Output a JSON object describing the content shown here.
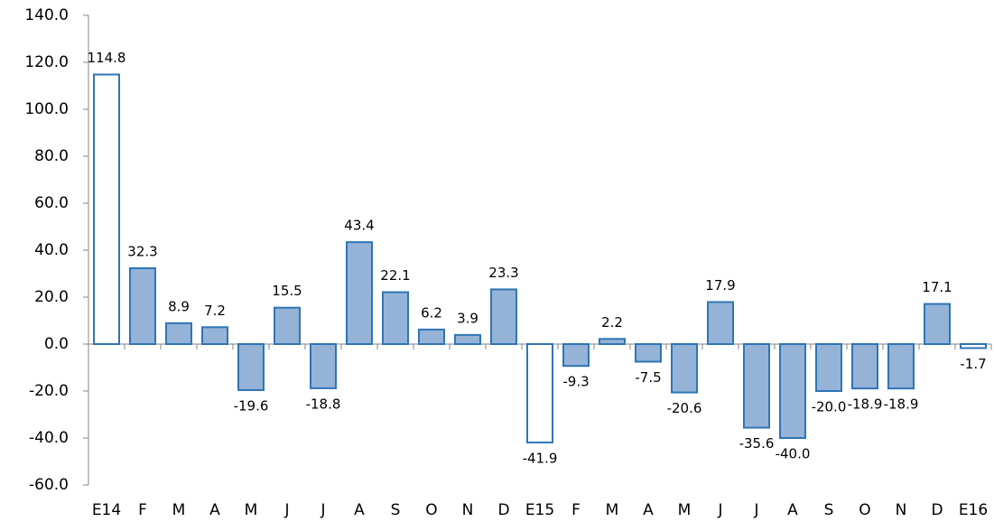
{
  "chart_data": {
    "type": "bar",
    "categories": [
      "E14",
      "F",
      "M",
      "A",
      "M",
      "J",
      "J",
      "A",
      "S",
      "O",
      "N",
      "D",
      "E15",
      "F",
      "M",
      "A",
      "M",
      "J",
      "J",
      "A",
      "S",
      "O",
      "N",
      "D",
      "E16"
    ],
    "values": [
      114.8,
      32.3,
      8.9,
      7.2,
      -19.6,
      15.5,
      -18.8,
      43.4,
      22.1,
      6.2,
      3.9,
      23.3,
      -41.9,
      -9.3,
      2.2,
      -7.5,
      -20.6,
      17.9,
      -35.6,
      -40.0,
      -20.0,
      -18.9,
      -18.9,
      17.1,
      -1.7
    ],
    "value_labels": [
      "114.8",
      "32.3",
      "8.9",
      "7.2",
      "-19.6",
      "15.5",
      "-18.8",
      "43.4",
      "22.1",
      "6.2",
      "3.9",
      "23.3",
      "-41.9",
      "-9.3",
      "2.2",
      "-7.5",
      "-20.6",
      "17.9",
      "-35.6",
      "-40.0",
      "-20.0",
      "-18.9",
      "-18.9",
      "17.1",
      "-1.7"
    ],
    "colors": [
      "#ffffff",
      "#95b3d7",
      "#95b3d7",
      "#95b3d7",
      "#95b3d7",
      "#95b3d7",
      "#95b3d7",
      "#95b3d7",
      "#95b3d7",
      "#95b3d7",
      "#95b3d7",
      "#95b3d7",
      "#ffffff",
      "#95b3d7",
      "#95b3d7",
      "#95b3d7",
      "#95b3d7",
      "#95b3d7",
      "#95b3d7",
      "#95b3d7",
      "#95b3d7",
      "#95b3d7",
      "#95b3d7",
      "#95b3d7",
      "#ffffff"
    ],
    "edge_color": "#2e75b6",
    "ylim": [
      -60,
      140
    ],
    "yticks": [
      {
        "value": -60,
        "label": "-60.0"
      },
      {
        "value": -40,
        "label": "-40.0"
      },
      {
        "value": -20,
        "label": "-20.0"
      },
      {
        "value": 0,
        "label": "0.0"
      },
      {
        "value": 20,
        "label": "20.0"
      },
      {
        "value": 40,
        "label": "40.0"
      },
      {
        "value": 60,
        "label": "60.0"
      },
      {
        "value": 80,
        "label": "80.0"
      },
      {
        "value": 100,
        "label": "100.0"
      },
      {
        "value": 120,
        "label": "120.0"
      },
      {
        "value": 140,
        "label": "140.0"
      }
    ],
    "grid": false
  }
}
